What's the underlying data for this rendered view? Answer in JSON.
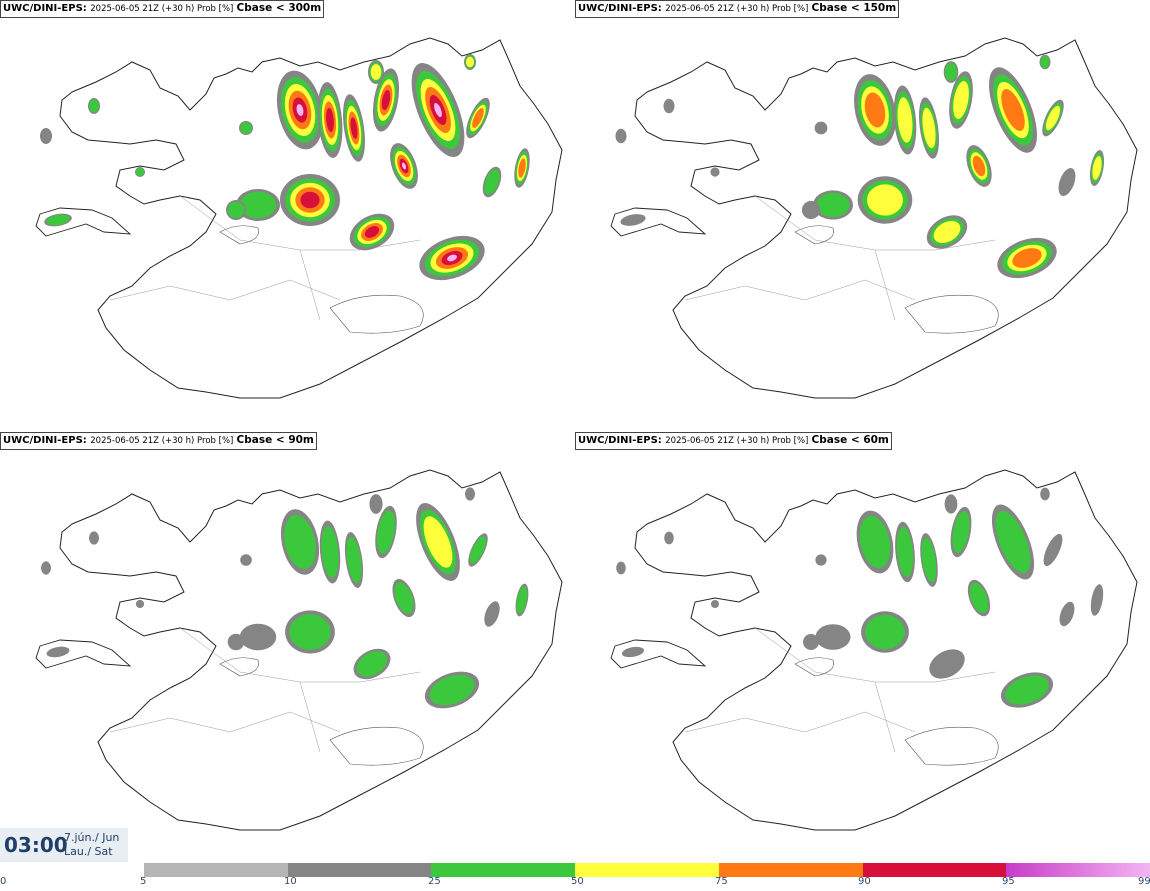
{
  "panels": [
    {
      "model": "UWC/DINI-EPS",
      "run": "2025-06-05 21Z (+30 h) Prob [%]",
      "threshold": "Cbase < 300m",
      "intensity": 1.0
    },
    {
      "model": "UWC/DINI-EPS",
      "run": "2025-06-05 21Z (+30 h) Prob [%]",
      "threshold": "Cbase < 150m",
      "intensity": 0.8
    },
    {
      "model": "UWC/DINI-EPS",
      "run": "2025-06-05 21Z (+30 h) Prob [%]",
      "threshold": "Cbase < 90m",
      "intensity": 0.62
    },
    {
      "model": "UWC/DINI-EPS",
      "run": "2025-06-05 21Z (+30 h) Prob [%]",
      "threshold": "Cbase < 60m",
      "intensity": 0.55
    }
  ],
  "time": {
    "clock": "03:00",
    "date_line1": "7.jún./ Jun",
    "date_line2": "Lau./ Sat"
  },
  "legend": {
    "ticks": [
      "0",
      "5",
      "10",
      "25",
      "50",
      "75",
      "90",
      "95",
      "99"
    ],
    "colors": [
      "#ffffff",
      "#b5b5b5",
      "#858585",
      "#3cc83c",
      "#ffff3c",
      "#ff7a14",
      "#d80f3a",
      "#c83cc8",
      "#f3b5f3"
    ]
  }
}
